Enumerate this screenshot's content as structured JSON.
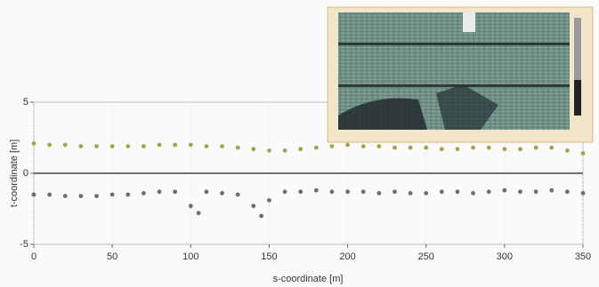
{
  "chart_data": {
    "type": "scatter",
    "xlabel": "s-coordinate [m]",
    "ylabel": "t-coordinate [m]",
    "xlim": [
      0,
      350
    ],
    "ylim": [
      -5,
      5
    ],
    "xticks": [
      0,
      50,
      100,
      150,
      200,
      250,
      300,
      350
    ],
    "yticks": [
      -5,
      0,
      5
    ],
    "hlines": [
      0
    ],
    "series": [
      {
        "color": "#9aa84a",
        "x": [
          0,
          10,
          20,
          30,
          40,
          50,
          60,
          70,
          80,
          90,
          100,
          110,
          120,
          130,
          140,
          150,
          160,
          170,
          180,
          190,
          200,
          210,
          220,
          230,
          240,
          250,
          260,
          270,
          280,
          290,
          300,
          310,
          320,
          330,
          340,
          350
        ],
        "values": [
          2.1,
          2.0,
          2.0,
          1.9,
          1.9,
          1.9,
          1.9,
          1.9,
          2.0,
          2.0,
          2.0,
          1.9,
          1.9,
          1.8,
          1.7,
          1.6,
          1.6,
          1.7,
          1.8,
          1.9,
          2.0,
          1.9,
          1.9,
          1.8,
          1.8,
          1.8,
          1.7,
          1.7,
          1.8,
          1.8,
          1.7,
          1.7,
          1.8,
          1.8,
          1.6,
          1.4
        ]
      },
      {
        "color": "#6e6e6e",
        "x": [
          0,
          10,
          20,
          30,
          40,
          50,
          60,
          70,
          80,
          90,
          100,
          105,
          110,
          120,
          130,
          140,
          145,
          150,
          160,
          170,
          180,
          190,
          200,
          210,
          220,
          230,
          240,
          250,
          260,
          270,
          280,
          290,
          300,
          310,
          320,
          330,
          340,
          350
        ],
        "values": [
          -1.5,
          -1.5,
          -1.6,
          -1.6,
          -1.6,
          -1.5,
          -1.5,
          -1.4,
          -1.3,
          -1.3,
          -2.3,
          -2.8,
          -1.3,
          -1.4,
          -1.5,
          -2.3,
          -3.0,
          -1.9,
          -1.3,
          -1.3,
          -1.2,
          -1.3,
          -1.3,
          -1.3,
          -1.4,
          -1.3,
          -1.4,
          -1.4,
          -1.3,
          -1.3,
          -1.4,
          -1.3,
          -1.2,
          -1.3,
          -1.3,
          -1.2,
          -1.3,
          -1.4
        ]
      }
    ]
  }
}
